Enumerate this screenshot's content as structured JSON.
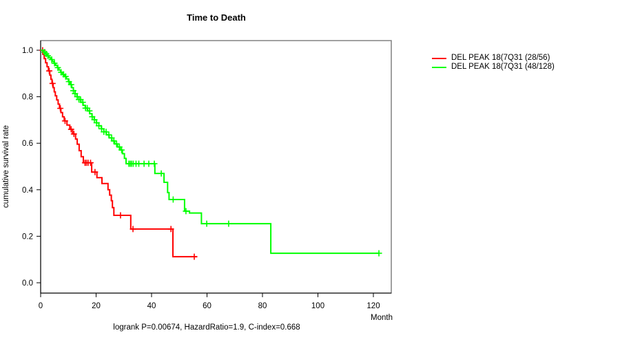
{
  "title": "Time to Death",
  "ylabel": "cumulative survival rate",
  "xlabel": "Month",
  "annotation": "logrank P=0.00674, HazardRatio=1.9, C-index=0.668",
  "legend": [
    {
      "label": "DEL PEAK 18(7Q31 (28/56)",
      "color": "#ff0000"
    },
    {
      "label": "DEL PEAK 18(7Q31 (48/128)",
      "color": "#00ff00"
    }
  ],
  "chart_data": {
    "type": "line",
    "subtype": "kaplan-meier-step-survival",
    "title": "Time to Death",
    "xlabel": "Month",
    "ylabel": "cumulative survival rate",
    "xticks": [
      0,
      20,
      40,
      60,
      80,
      100,
      120
    ],
    "yticks": [
      0.0,
      0.2,
      0.4,
      0.6,
      0.8,
      1.0
    ],
    "xlim": [
      0,
      126.6
    ],
    "ylim": [
      0.0,
      1.0
    ],
    "grid": false,
    "legend_position": "right-outside",
    "series": [
      {
        "name": "DEL PEAK 18(7Q31 (28/56)",
        "color": "#ff0000",
        "end_time": 56.5,
        "steps": [
          [
            0,
            1.0
          ],
          [
            0.8,
            0.982
          ],
          [
            1.3,
            0.964
          ],
          [
            1.8,
            0.946
          ],
          [
            2.3,
            0.929
          ],
          [
            2.8,
            0.911
          ],
          [
            3.3,
            0.893
          ],
          [
            3.7,
            0.875
          ],
          [
            4.1,
            0.857
          ],
          [
            4.5,
            0.839
          ],
          [
            4.9,
            0.821
          ],
          [
            5.3,
            0.804
          ],
          [
            5.8,
            0.786
          ],
          [
            6.3,
            0.768
          ],
          [
            6.8,
            0.75
          ],
          [
            7.3,
            0.732
          ],
          [
            7.9,
            0.714
          ],
          [
            8.5,
            0.696
          ],
          [
            9.5,
            0.678
          ],
          [
            10.5,
            0.66
          ],
          [
            11.5,
            0.64
          ],
          [
            12.6,
            0.618
          ],
          [
            13.2,
            0.596
          ],
          [
            13.9,
            0.568
          ],
          [
            14.6,
            0.542
          ],
          [
            15.4,
            0.516
          ],
          [
            18.4,
            0.476
          ],
          [
            20.3,
            0.452
          ],
          [
            22.1,
            0.427
          ],
          [
            24.3,
            0.4
          ],
          [
            24.9,
            0.377
          ],
          [
            25.5,
            0.353
          ],
          [
            25.9,
            0.323
          ],
          [
            26.4,
            0.29
          ],
          [
            32.5,
            0.231
          ],
          [
            47.7,
            0.112
          ]
        ],
        "censor_times": [
          0.7,
          3.1,
          4.3,
          7.1,
          8.8,
          11.0,
          12.0,
          16.0,
          16.5,
          17.1,
          18.0,
          19.6,
          28.8,
          33.3,
          47.0,
          55.4
        ]
      },
      {
        "name": "DEL PEAK 18(7Q31 (48/128)",
        "color": "#00ff00",
        "end_time": 122.0,
        "steps": [
          [
            0,
            1.0
          ],
          [
            1.0,
            0.992
          ],
          [
            1.6,
            0.984
          ],
          [
            2.2,
            0.976
          ],
          [
            3.0,
            0.968
          ],
          [
            3.6,
            0.96
          ],
          [
            4.2,
            0.952
          ],
          [
            4.8,
            0.944
          ],
          [
            5.4,
            0.935
          ],
          [
            6.0,
            0.925
          ],
          [
            6.6,
            0.915
          ],
          [
            7.2,
            0.905
          ],
          [
            7.9,
            0.896
          ],
          [
            8.6,
            0.887
          ],
          [
            9.3,
            0.877
          ],
          [
            10.0,
            0.865
          ],
          [
            10.6,
            0.852
          ],
          [
            11.2,
            0.839
          ],
          [
            11.8,
            0.826
          ],
          [
            12.4,
            0.813
          ],
          [
            13.1,
            0.8
          ],
          [
            13.8,
            0.788
          ],
          [
            14.5,
            0.776
          ],
          [
            15.3,
            0.763
          ],
          [
            16.1,
            0.751
          ],
          [
            16.9,
            0.739
          ],
          [
            17.7,
            0.727
          ],
          [
            18.5,
            0.714
          ],
          [
            19.3,
            0.701
          ],
          [
            20.1,
            0.688
          ],
          [
            21.0,
            0.675
          ],
          [
            21.9,
            0.662
          ],
          [
            22.8,
            0.649
          ],
          [
            23.7,
            0.636
          ],
          [
            24.7,
            0.623
          ],
          [
            25.7,
            0.61
          ],
          [
            26.7,
            0.597
          ],
          [
            27.7,
            0.584
          ],
          [
            28.7,
            0.571
          ],
          [
            29.5,
            0.555
          ],
          [
            30.2,
            0.535
          ],
          [
            30.8,
            0.512
          ],
          [
            41.2,
            0.47
          ],
          [
            44.5,
            0.432
          ],
          [
            45.8,
            0.388
          ],
          [
            46.3,
            0.358
          ],
          [
            51.9,
            0.308
          ],
          [
            53.7,
            0.3
          ],
          [
            58.0,
            0.254
          ],
          [
            83.0,
            0.127
          ]
        ],
        "censor_times": [
          1.4,
          2.0,
          2.6,
          4.0,
          5.0,
          6.2,
          7.4,
          8.2,
          9.0,
          10.2,
          11.0,
          11.8,
          12.4,
          13.2,
          13.8,
          14.4,
          15.2,
          16.2,
          16.8,
          17.6,
          18.6,
          19.4,
          20.2,
          21.0,
          22.0,
          22.8,
          23.6,
          24.6,
          25.6,
          26.4,
          27.4,
          28.4,
          29.2,
          31.8,
          32.3,
          32.8,
          33.4,
          34.4,
          35.4,
          37.3,
          39.0,
          41.0,
          43.5,
          47.8,
          52.4,
          59.9,
          67.8,
          122.0
        ]
      }
    ]
  },
  "colors": {
    "axis": "#000000",
    "frame": "#808080",
    "background": "#ffffff"
  }
}
